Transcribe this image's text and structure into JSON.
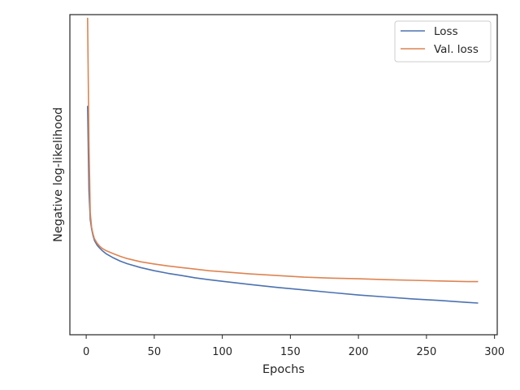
{
  "chart_data": {
    "type": "line",
    "title": "",
    "xlabel": "Epochs",
    "ylabel": "Negative log-likelihood",
    "xlim": [
      -12,
      302
    ],
    "ylim": [
      0,
      1
    ],
    "xticks": [
      0,
      50,
      100,
      150,
      200,
      250,
      300
    ],
    "grid": false,
    "legend_position": "top-right",
    "series": [
      {
        "name": "Loss",
        "color": "#4c72b0",
        "x": [
          1,
          2,
          3,
          4,
          5,
          6,
          8,
          10,
          12,
          15,
          20,
          25,
          30,
          40,
          50,
          60,
          70,
          80,
          90,
          100,
          120,
          140,
          160,
          180,
          200,
          220,
          240,
          260,
          280,
          288
        ],
        "y": [
          0.715,
          0.45,
          0.36,
          0.33,
          0.31,
          0.295,
          0.28,
          0.27,
          0.262,
          0.252,
          0.24,
          0.23,
          0.222,
          0.21,
          0.2,
          0.192,
          0.185,
          0.178,
          0.172,
          0.167,
          0.157,
          0.148,
          0.14,
          0.132,
          0.124,
          0.118,
          0.112,
          0.107,
          0.101,
          0.099
        ]
      },
      {
        "name": "Val. loss",
        "color": "#dd8452",
        "x": [
          1,
          2,
          3,
          4,
          5,
          6,
          8,
          10,
          12,
          15,
          20,
          25,
          30,
          40,
          50,
          60,
          70,
          80,
          90,
          100,
          120,
          140,
          160,
          180,
          200,
          220,
          240,
          260,
          280,
          288
        ],
        "y": [
          0.99,
          0.6,
          0.38,
          0.335,
          0.315,
          0.3,
          0.286,
          0.276,
          0.269,
          0.262,
          0.253,
          0.245,
          0.238,
          0.228,
          0.221,
          0.215,
          0.21,
          0.205,
          0.2,
          0.197,
          0.19,
          0.185,
          0.18,
          0.177,
          0.175,
          0.172,
          0.17,
          0.168,
          0.166,
          0.166
        ]
      }
    ]
  }
}
